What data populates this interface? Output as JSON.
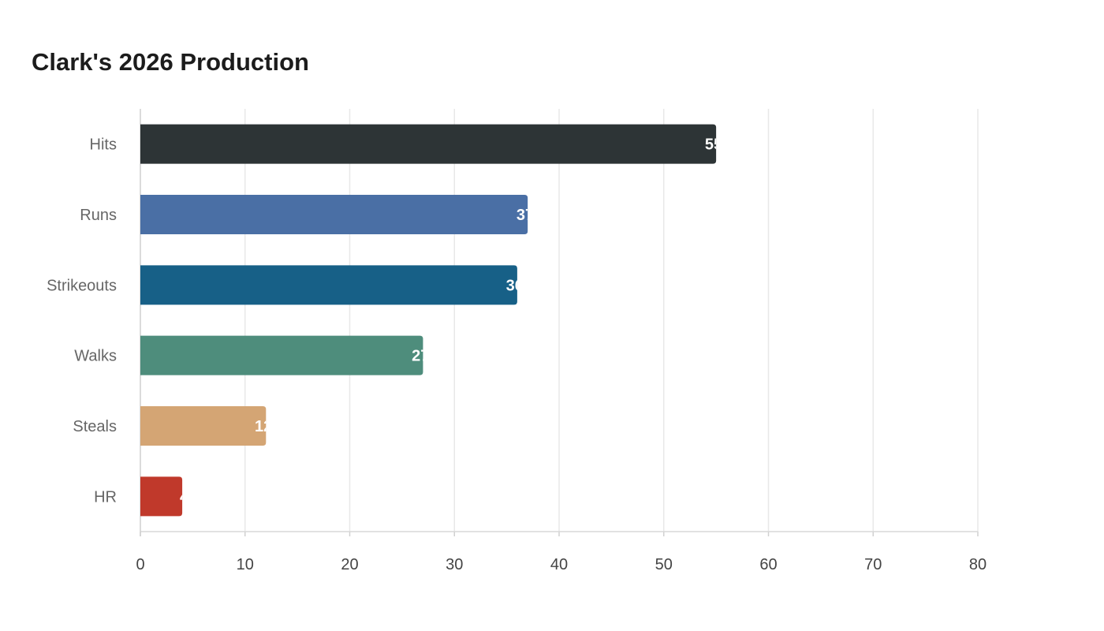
{
  "chart_data": {
    "type": "bar",
    "orientation": "horizontal",
    "title": "Clark's 2026 Production",
    "xlabel": "",
    "ylabel": "",
    "categories": [
      "Hits",
      "Runs",
      "Strikeouts",
      "Walks",
      "Steals",
      "HR"
    ],
    "values": [
      55,
      37,
      36,
      27,
      12,
      4
    ],
    "colors": [
      "#2d3436",
      "#4a6fa5",
      "#176087",
      "#4e8d7c",
      "#d4a574",
      "#c0392b"
    ],
    "xlim": [
      0,
      80
    ],
    "xticks": [
      0,
      10,
      20,
      30,
      40,
      50,
      60,
      70,
      80
    ],
    "grid": true,
    "legend": "none"
  }
}
